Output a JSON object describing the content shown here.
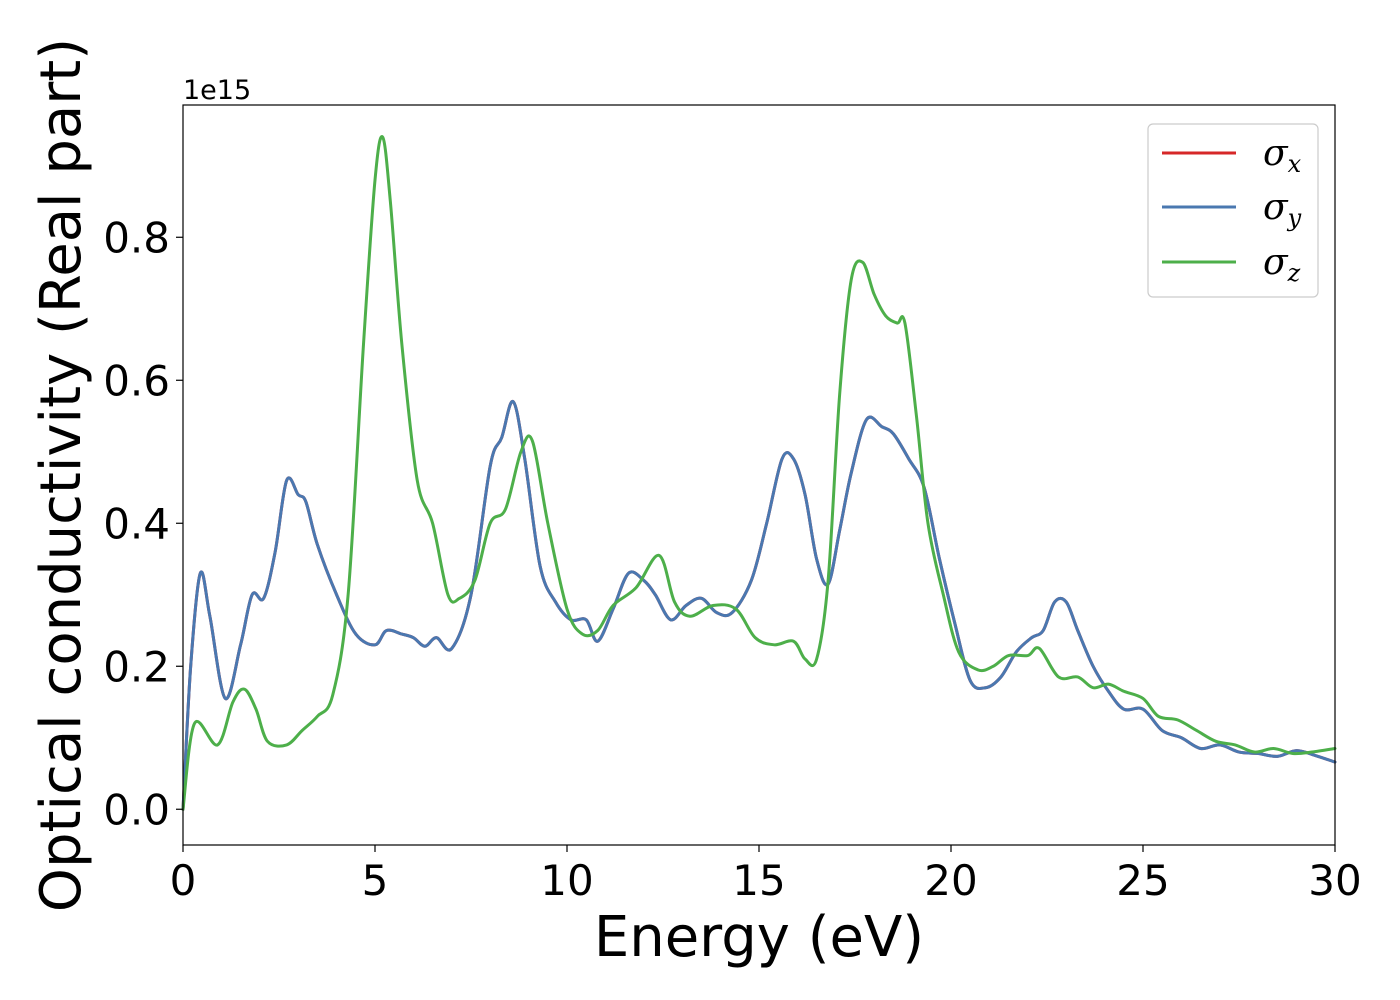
{
  "chart_data": {
    "type": "line",
    "xlabel": "Energy (eV)",
    "ylabel": "Optical conductivity (Real part)",
    "y_offset_label": "1e15",
    "xlim": [
      0,
      30
    ],
    "ylim": [
      -0.05,
      0.985
    ],
    "x_ticks": [
      0,
      5,
      10,
      15,
      20,
      25,
      30
    ],
    "x_tick_labels": [
      "0",
      "5",
      "10",
      "15",
      "20",
      "25",
      "30"
    ],
    "y_ticks": [
      0.0,
      0.2,
      0.4,
      0.6,
      0.8
    ],
    "y_tick_labels": [
      "0.0",
      "0.2",
      "0.4",
      "0.6",
      "0.8"
    ],
    "grid": false,
    "legend_position": "top-right",
    "series": [
      {
        "name": "σx",
        "base": "σ",
        "sub": "x",
        "color": "#d62728",
        "x": [
          0,
          0.2,
          0.45,
          0.7,
          1.1,
          1.5,
          1.8,
          2.1,
          2.4,
          2.7,
          3.0,
          3.2,
          3.5,
          4.0,
          4.5,
          5.0,
          5.3,
          5.7,
          6.0,
          6.3,
          6.6,
          7.0,
          7.5,
          8.0,
          8.3,
          8.6,
          8.9,
          9.3,
          9.7,
          10.1,
          10.5,
          10.8,
          11.2,
          11.6,
          12.0,
          12.3,
          12.7,
          13.1,
          13.5,
          13.9,
          14.3,
          14.8,
          15.2,
          15.6,
          15.9,
          16.2,
          16.5,
          16.8,
          17.1,
          17.4,
          17.8,
          18.2,
          18.5,
          18.9,
          19.3,
          19.7,
          20.1,
          20.5,
          20.9,
          21.3,
          21.7,
          22.1,
          22.4,
          22.7,
          23.0,
          23.3,
          23.7,
          24.1,
          24.5,
          25.0,
          25.5,
          26.0,
          26.5,
          27.0,
          27.5,
          28.0,
          28.5,
          29.0,
          29.5,
          30.0
        ],
        "y": [
          0.0,
          0.2,
          0.33,
          0.27,
          0.155,
          0.23,
          0.3,
          0.295,
          0.36,
          0.46,
          0.44,
          0.43,
          0.37,
          0.3,
          0.245,
          0.23,
          0.25,
          0.245,
          0.24,
          0.228,
          0.24,
          0.225,
          0.3,
          0.48,
          0.52,
          0.57,
          0.49,
          0.34,
          0.29,
          0.265,
          0.265,
          0.235,
          0.28,
          0.33,
          0.32,
          0.3,
          0.265,
          0.285,
          0.295,
          0.275,
          0.275,
          0.32,
          0.4,
          0.49,
          0.49,
          0.44,
          0.35,
          0.315,
          0.39,
          0.47,
          0.545,
          0.535,
          0.525,
          0.49,
          0.45,
          0.35,
          0.26,
          0.18,
          0.17,
          0.185,
          0.22,
          0.24,
          0.25,
          0.29,
          0.29,
          0.25,
          0.2,
          0.165,
          0.14,
          0.14,
          0.11,
          0.1,
          0.085,
          0.09,
          0.08,
          0.078,
          0.074,
          0.082,
          0.075,
          0.066
        ]
      },
      {
        "name": "σy",
        "base": "σ",
        "sub": "y",
        "color": "#4a78b0",
        "x": [
          0,
          0.2,
          0.45,
          0.7,
          1.1,
          1.5,
          1.8,
          2.1,
          2.4,
          2.7,
          3.0,
          3.2,
          3.5,
          4.0,
          4.5,
          5.0,
          5.3,
          5.7,
          6.0,
          6.3,
          6.6,
          7.0,
          7.5,
          8.0,
          8.3,
          8.6,
          8.9,
          9.3,
          9.7,
          10.1,
          10.5,
          10.8,
          11.2,
          11.6,
          12.0,
          12.3,
          12.7,
          13.1,
          13.5,
          13.9,
          14.3,
          14.8,
          15.2,
          15.6,
          15.9,
          16.2,
          16.5,
          16.8,
          17.1,
          17.4,
          17.8,
          18.2,
          18.5,
          18.9,
          19.3,
          19.7,
          20.1,
          20.5,
          20.9,
          21.3,
          21.7,
          22.1,
          22.4,
          22.7,
          23.0,
          23.3,
          23.7,
          24.1,
          24.5,
          25.0,
          25.5,
          26.0,
          26.5,
          27.0,
          27.5,
          28.0,
          28.5,
          29.0,
          29.5,
          30.0
        ],
        "y": [
          0.0,
          0.2,
          0.33,
          0.27,
          0.155,
          0.23,
          0.3,
          0.295,
          0.36,
          0.46,
          0.44,
          0.43,
          0.37,
          0.3,
          0.245,
          0.23,
          0.25,
          0.245,
          0.24,
          0.228,
          0.24,
          0.225,
          0.3,
          0.48,
          0.52,
          0.57,
          0.49,
          0.34,
          0.29,
          0.265,
          0.265,
          0.235,
          0.28,
          0.33,
          0.32,
          0.3,
          0.265,
          0.285,
          0.295,
          0.275,
          0.275,
          0.32,
          0.4,
          0.49,
          0.49,
          0.44,
          0.35,
          0.315,
          0.39,
          0.47,
          0.545,
          0.535,
          0.525,
          0.49,
          0.45,
          0.35,
          0.26,
          0.18,
          0.17,
          0.185,
          0.22,
          0.24,
          0.25,
          0.29,
          0.29,
          0.25,
          0.2,
          0.165,
          0.14,
          0.14,
          0.11,
          0.1,
          0.085,
          0.09,
          0.08,
          0.078,
          0.074,
          0.082,
          0.075,
          0.066
        ]
      },
      {
        "name": "σz",
        "base": "σ",
        "sub": "z",
        "color": "#4daf4a",
        "x": [
          0,
          0.3,
          0.9,
          1.3,
          1.6,
          1.9,
          2.2,
          2.7,
          3.1,
          3.5,
          3.9,
          4.3,
          4.7,
          5.0,
          5.2,
          5.4,
          5.7,
          6.1,
          6.5,
          6.9,
          7.2,
          7.6,
          8.0,
          8.4,
          8.8,
          9.1,
          9.5,
          10.0,
          10.4,
          10.8,
          11.2,
          11.8,
          12.4,
          12.8,
          13.2,
          13.8,
          14.4,
          14.9,
          15.4,
          15.9,
          16.2,
          16.5,
          16.8,
          17.1,
          17.4,
          17.7,
          18.0,
          18.3,
          18.6,
          18.8,
          19.1,
          19.4,
          19.8,
          20.2,
          20.7,
          21.1,
          21.5,
          22.0,
          22.3,
          22.8,
          23.3,
          23.7,
          24.1,
          24.5,
          25.0,
          25.4,
          25.9,
          26.4,
          26.9,
          27.4,
          27.9,
          28.4,
          28.9,
          29.4,
          30.0
        ],
        "y": [
          0.0,
          0.12,
          0.09,
          0.15,
          0.168,
          0.14,
          0.095,
          0.09,
          0.11,
          0.13,
          0.16,
          0.3,
          0.65,
          0.88,
          0.94,
          0.85,
          0.65,
          0.46,
          0.4,
          0.3,
          0.295,
          0.32,
          0.4,
          0.42,
          0.5,
          0.515,
          0.4,
          0.28,
          0.245,
          0.25,
          0.285,
          0.31,
          0.355,
          0.29,
          0.27,
          0.285,
          0.28,
          0.24,
          0.23,
          0.235,
          0.21,
          0.21,
          0.32,
          0.58,
          0.74,
          0.765,
          0.72,
          0.69,
          0.68,
          0.68,
          0.55,
          0.4,
          0.3,
          0.22,
          0.195,
          0.2,
          0.215,
          0.215,
          0.225,
          0.185,
          0.185,
          0.17,
          0.175,
          0.165,
          0.155,
          0.13,
          0.125,
          0.11,
          0.095,
          0.09,
          0.08,
          0.085,
          0.078,
          0.08,
          0.085
        ]
      }
    ]
  }
}
